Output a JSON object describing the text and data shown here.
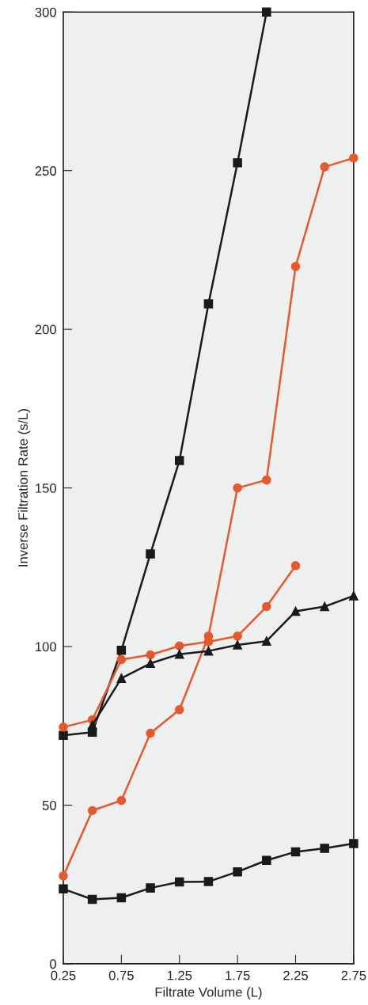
{
  "chart_data": {
    "type": "line",
    "xlabel": "Filtrate Volume (L)",
    "ylabel": "Inverse Filtration Rate (s/L)",
    "x": [
      0.25,
      0.5,
      0.75,
      1.0,
      1.25,
      1.5,
      1.75,
      2.0,
      2.25,
      2.5,
      2.75
    ],
    "series": [
      {
        "color": "#1a1a1a",
        "marker": "square",
        "values": [
          72,
          73,
          98.8,
          129.2,
          158.6,
          208,
          252.5,
          300,
          null,
          null,
          null
        ]
      },
      {
        "color": "#e8582c",
        "marker": "circle",
        "values": [
          27.7,
          48.3,
          51.5,
          72.7,
          80.1,
          103.3,
          150,
          152.5,
          219.8,
          251.2,
          254
        ]
      },
      {
        "color": "#e8582c",
        "marker": "circle",
        "values": [
          74.6,
          76.9,
          95.9,
          97.4,
          100.2,
          101.5,
          103.3,
          112.6,
          125.5,
          null,
          null
        ]
      },
      {
        "color": "#1a1a1a",
        "marker": "triangle",
        "values": [
          null,
          75.2,
          90,
          94.7,
          97.6,
          98.6,
          100.5,
          101.7,
          111.1,
          112.6,
          116
        ]
      },
      {
        "color": "#1a1a1a",
        "marker": "square",
        "values": [
          23.6,
          20.3,
          20.8,
          23.9,
          25.8,
          25.9,
          29,
          32.6,
          35.3,
          36.4,
          37.9
        ]
      }
    ],
    "xlim": [
      0.25,
      2.75
    ],
    "xticks": [
      0.25,
      0.75,
      1.25,
      1.75,
      2.25,
      2.75
    ],
    "ylim": [
      0,
      300
    ],
    "yticks": [
      0,
      50,
      100,
      150,
      200,
      250,
      300
    ],
    "grid": false,
    "legend": false
  }
}
